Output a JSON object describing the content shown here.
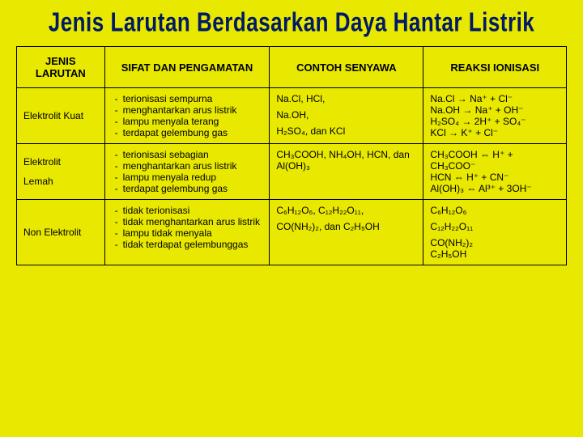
{
  "title": "Jenis Larutan Berdasarkan Daya Hantar Listrik",
  "headers": {
    "col1": "JENIS LARUTAN",
    "col2": "SIFAT DAN PENGAMATAN",
    "col3": "CONTOH SENYAWA",
    "col4": "REAKSI IONISASI"
  },
  "rows": {
    "r1": {
      "jenis": "Elektrolit Kuat",
      "sifat": {
        "b1": "terionisasi sempurna",
        "b2": "menghantarkan arus listrik",
        "b3": "lampu menyala terang",
        "b4": "terdapat gelembung gas"
      },
      "contoh": {
        "l1": "Na.Cl, HCl,",
        "l2": "Na.OH,",
        "l3": "H₂SO₄, dan KCl"
      },
      "reaksi": {
        "l1": "Na.Cl → Na⁺ + Cl⁻",
        "l2": "Na.OH → Na⁺ + OH⁻",
        "l3": "H₂SO₄ → 2H⁺ + SO₄⁻",
        "l4": "KCl → K⁺ + Cl⁻"
      }
    },
    "r2": {
      "jenis1": "Elektrolit",
      "jenis2": "Lemah",
      "sifat": {
        "b1": "terionisasi sebagian",
        "b2": "menghantarkan arus listrik",
        "b3": "lampu menyala redup",
        "b4": "terdapat gelembung gas"
      },
      "contoh": {
        "l1": "CH₃COOH, NH₄OH, HCN, dan Al(OH)₃"
      },
      "reaksi": {
        "l1": "CH₃COOH ⇔ H⁺ + CH₃COO⁻",
        "l2": "HCN ⇔ H⁺ + CN⁻",
        "l3": "Al(OH)₃ ⇔ Al³⁺ + 3OH⁻"
      }
    },
    "r3": {
      "jenis": "Non Elektrolit",
      "sifat": {
        "b1": "tidak terionisasi",
        "b2": "tidak menghantarkan arus listrik",
        "b3": "lampu tidak menyala",
        "b4": "tidak terdapat gelembunggas"
      },
      "contoh": {
        "l1": "C₆H₁₂O₆, C₁₂H₂₂O₁₁,",
        "l2": "CO(NH₂)₂, dan C₂H₅OH"
      },
      "reaksi": {
        "l1": "C₆H₁₂O₆",
        "l2": "C₁₂H₂₂O₁₁",
        "l3": "CO(NH₂)₂",
        "l4": "C₂H₅OH"
      }
    }
  },
  "style": {
    "background": "#e8e800",
    "title_color": "#001a66",
    "border_color": "#000000",
    "font_size_header": 13,
    "font_size_cell": 12,
    "title_font_size": 26
  }
}
